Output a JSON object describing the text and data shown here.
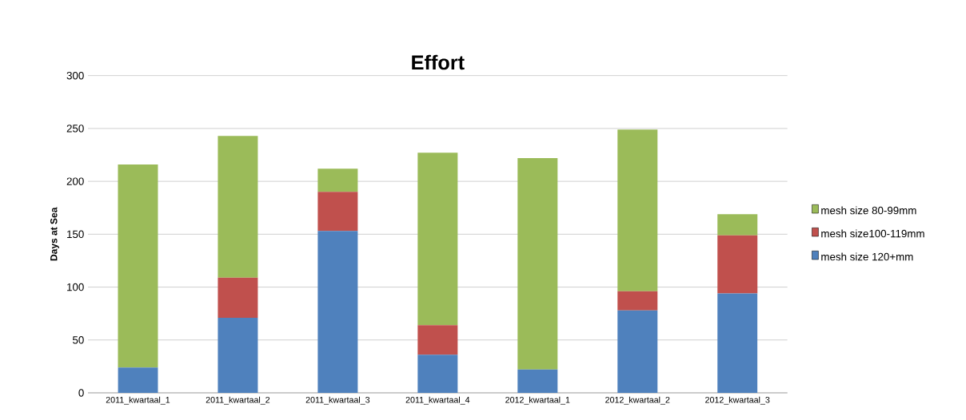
{
  "chart_data": {
    "type": "bar",
    "title": "Effort",
    "ylabel": "Days at Sea",
    "stacked": true,
    "categories": [
      "2011_kwartaal_1",
      "2011_kwartaal_2",
      "2011_kwartaal_3",
      "2011_kwartaal_4",
      "2012_kwartaal_1",
      "2012_kwartaal_2",
      "2012_kwartaal_3"
    ],
    "series": [
      {
        "name": "mesh size 120+mm",
        "color": "#4f81bd",
        "values": [
          24,
          71,
          153,
          36,
          22,
          78,
          94
        ]
      },
      {
        "name": "mesh size100-119mm",
        "color": "#c0504d",
        "values": [
          0,
          38,
          37,
          28,
          0,
          18,
          55
        ]
      },
      {
        "name": "mesh size 80-99mm",
        "color": "#9bbb59",
        "values": [
          192,
          134,
          22,
          163,
          200,
          153,
          20
        ]
      }
    ],
    "ylim": [
      0,
      300
    ],
    "yticks": [
      0,
      50,
      100,
      150,
      200,
      250,
      300
    ],
    "grid": "y",
    "legend": "right"
  }
}
